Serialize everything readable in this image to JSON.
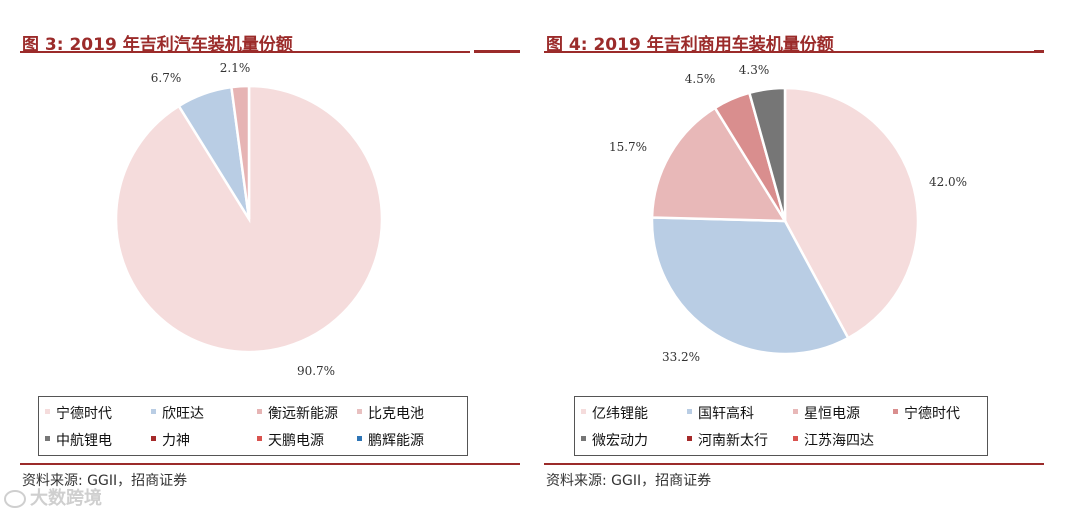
{
  "chart_data": [
    {
      "type": "pie",
      "title": "图 3:  2019 年吉利汽车装机量份额",
      "slices": [
        {
          "name": "宁德时代",
          "value": 90.7,
          "label": "90.7%",
          "color": "#f5dcdc"
        },
        {
          "name": "欣旺达",
          "value": 6.7,
          "label": "6.7%",
          "color": "#b9cde4"
        },
        {
          "name": "衡远新能源",
          "value": 2.1,
          "label": "2.1%",
          "color": "#e6b4b4"
        }
      ],
      "legend": [
        {
          "label": "宁德时代",
          "color": "#f5dcdc"
        },
        {
          "label": "欣旺达",
          "color": "#b9cde4"
        },
        {
          "label": "衡远新能源",
          "color": "#e6b4b4"
        },
        {
          "label": "比克电池",
          "color": "#e8c0c0"
        },
        {
          "label": "中航锂电",
          "color": "#777777"
        },
        {
          "label": "力神",
          "color": "#a52a2a"
        },
        {
          "label": "天鹏电源",
          "color": "#d9534f"
        },
        {
          "label": "鹏辉能源",
          "color": "#2e75b6"
        }
      ],
      "source": "资料来源:  GGII，招商证券"
    },
    {
      "type": "pie",
      "title": "图 4:  2019 年吉利商用车装机量份额",
      "slices": [
        {
          "name": "亿纬锂能",
          "value": 42.0,
          "label": "42.0%",
          "color": "#f5dcdc"
        },
        {
          "name": "国轩高科",
          "value": 33.2,
          "label": "33.2%",
          "color": "#b9cde4"
        },
        {
          "name": "星恒电源",
          "value": 15.7,
          "label": "15.7%",
          "color": "#e8b8b8"
        },
        {
          "name": "宁德时代",
          "value": 4.5,
          "label": "4.5%",
          "color": "#d98e8e"
        },
        {
          "name": "微宏动力",
          "value": 4.3,
          "label": "4.3%",
          "color": "#767676"
        }
      ],
      "legend": [
        {
          "label": "亿纬锂能",
          "color": "#f5dcdc"
        },
        {
          "label": "国轩高科",
          "color": "#b9cde4"
        },
        {
          "label": "星恒电源",
          "color": "#e8b8b8"
        },
        {
          "label": "宁德时代",
          "color": "#d98e8e"
        },
        {
          "label": "微宏动力",
          "color": "#767676"
        },
        {
          "label": "河南新太行",
          "color": "#a52a2a"
        },
        {
          "label": "江苏海四达",
          "color": "#d9534f"
        }
      ],
      "source": "资料来源:  GGII，招商证券"
    }
  ],
  "watermark": "大数跨境"
}
